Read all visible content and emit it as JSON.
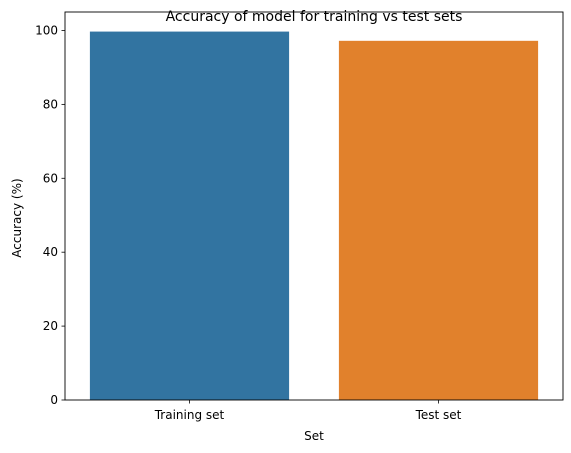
{
  "chart_data": {
    "type": "bar",
    "title": "Accuracy of model for training vs test sets",
    "xlabel": "Set",
    "ylabel": "Accuracy (%)",
    "categories": [
      "Training set",
      "Test set"
    ],
    "values": [
      99.7,
      97.2
    ],
    "colors": [
      "#3274a1",
      "#e1812c"
    ],
    "ylim": [
      0,
      105
    ],
    "yticks": [
      0,
      20,
      40,
      60,
      80,
      100
    ],
    "grid": false,
    "legend": "none"
  }
}
